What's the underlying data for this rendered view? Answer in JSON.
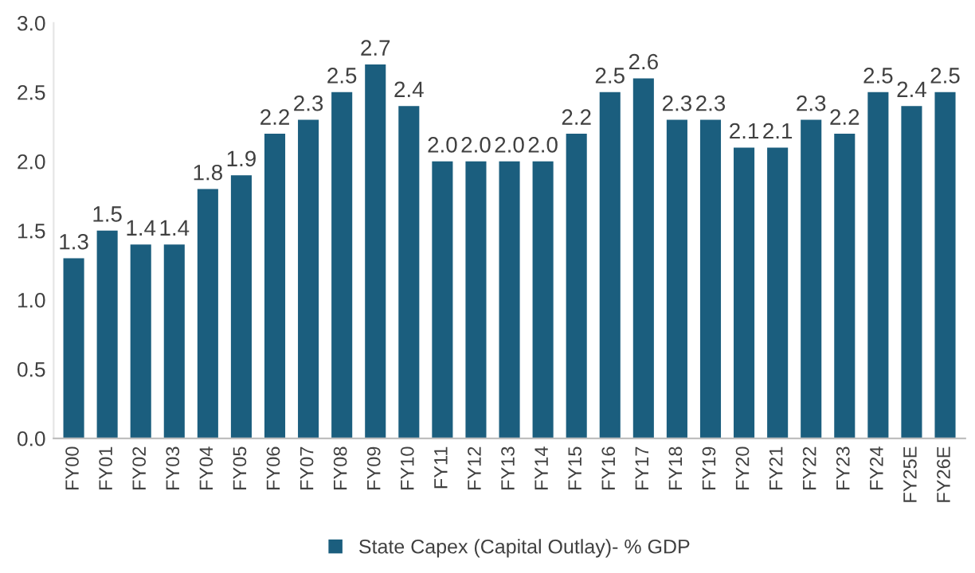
{
  "chart_data": {
    "type": "bar",
    "categories": [
      "FY00",
      "FY01",
      "FY02",
      "FY03",
      "FY04",
      "FY05",
      "FY06",
      "FY07",
      "FY08",
      "FY09",
      "FY10",
      "FY11",
      "FY12",
      "FY13",
      "FY14",
      "FY15",
      "FY16",
      "FY17",
      "FY18",
      "FY19",
      "FY20",
      "FY21",
      "FY22",
      "FY23",
      "FY24",
      "FY25E",
      "FY26E"
    ],
    "series": [
      {
        "name": "State Capex (Capital Outlay)- % GDP",
        "color": "#1b5e7e",
        "values": [
          1.3,
          1.5,
          1.4,
          1.4,
          1.8,
          1.9,
          2.2,
          2.3,
          2.5,
          2.7,
          2.4,
          2.0,
          2.0,
          2.0,
          2.0,
          2.2,
          2.5,
          2.6,
          2.3,
          2.3,
          2.1,
          2.1,
          2.3,
          2.2,
          2.5,
          2.4,
          2.5
        ]
      }
    ],
    "ylim": [
      0,
      3
    ],
    "yticks": [
      {
        "value": 0,
        "label": "0.0"
      },
      0.5,
      {
        "value": 1,
        "label": "1.0"
      },
      1.5,
      {
        "value": 2,
        "label": "2.0"
      },
      2.5,
      {
        "value": 3,
        "label": "3.0"
      }
    ],
    "value_labels": [
      "1.3",
      "1.5",
      "1.4",
      "1.4",
      "1.8",
      "1.9",
      "2.2",
      "2.3",
      "2.5",
      "2.7",
      "2.4",
      "2.0",
      "2.0",
      "2.0",
      "2.0",
      "2.2",
      "2.5",
      "2.6",
      "2.3",
      "2.3",
      "2.1",
      "2.1",
      "2.3",
      "2.2",
      "2.5",
      "2.4",
      "2.5"
    ],
    "grid": false,
    "legend": "bottom"
  }
}
